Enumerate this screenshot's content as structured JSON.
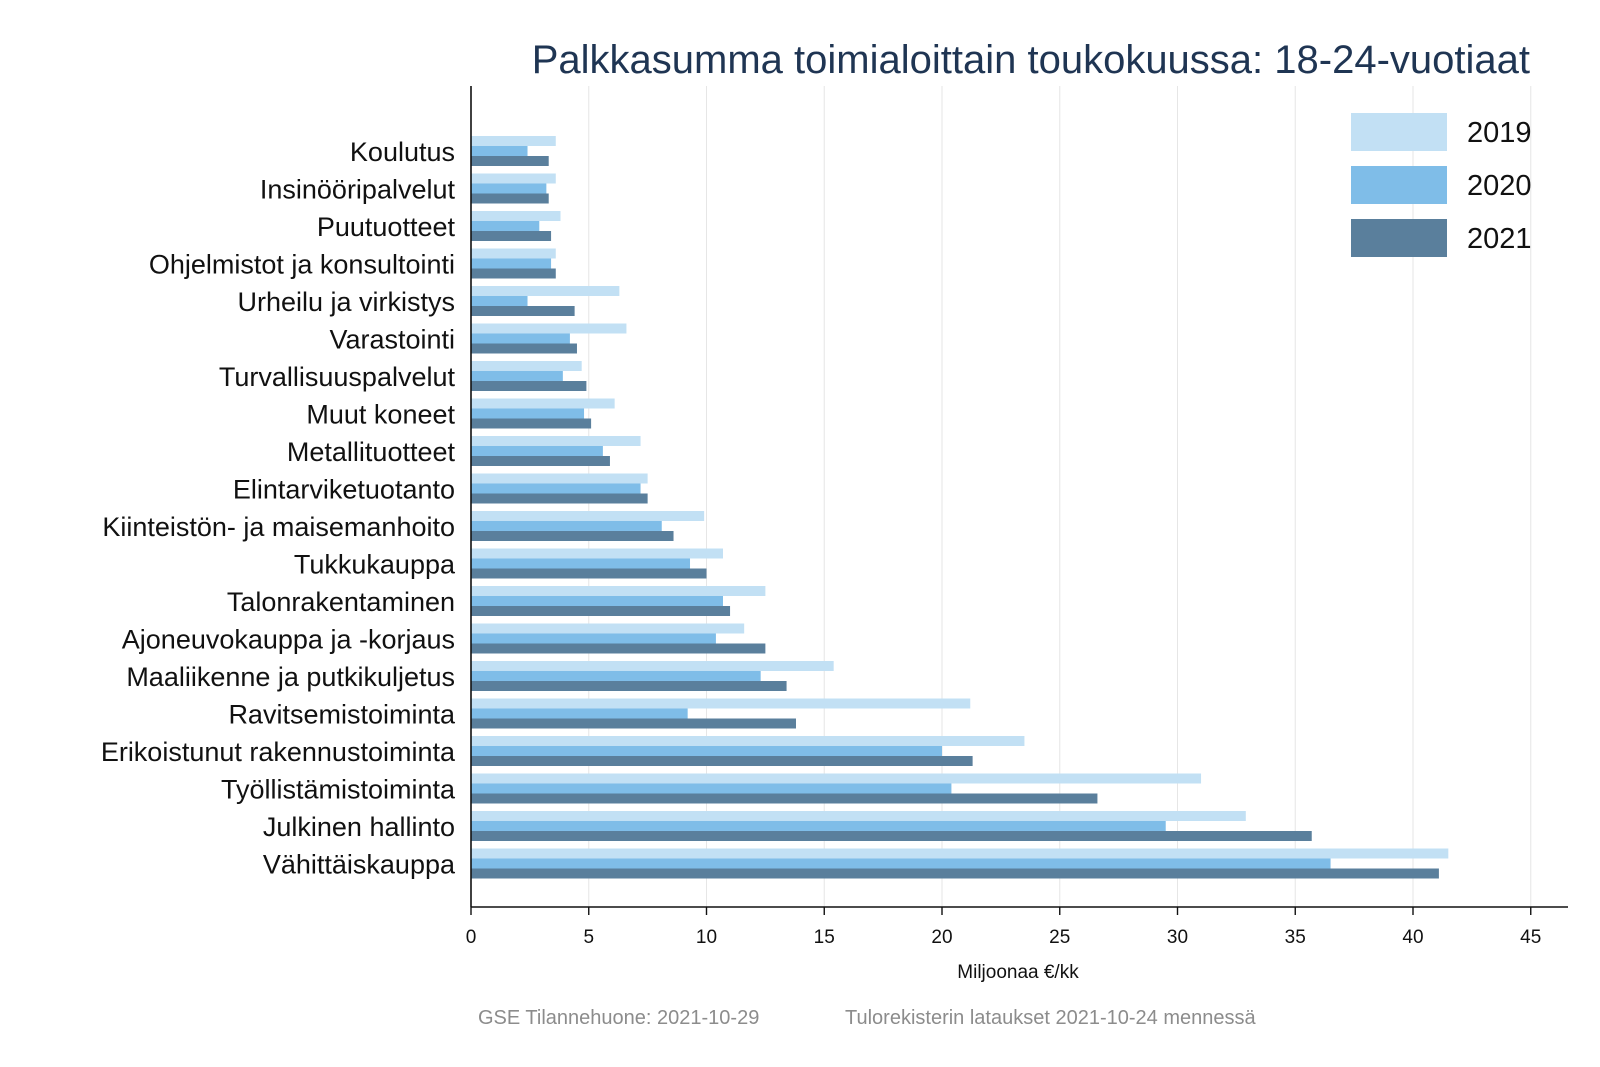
{
  "colors": {
    "series_2019": "#c2e0f4",
    "series_2020": "#7fbde8",
    "series_2021": "#5a7f9c"
  },
  "chart_data": {
    "type": "bar",
    "orientation": "horizontal",
    "title": "Palkkasumma toimialoittain toukokuussa: 18-24-vuotiaat",
    "xlabel": "Miljoonaa €/kk",
    "ylabel": "",
    "xlim": [
      0,
      45
    ],
    "xticks": [
      "0",
      "5",
      "10",
      "15",
      "20",
      "25",
      "30",
      "35",
      "40",
      "45"
    ],
    "grid": "vertical",
    "legend_position": "top-right",
    "categories": [
      "Koulutus",
      "Insinööripalvelut",
      "Puutuotteet",
      "Ohjelmistot ja konsultointi",
      "Urheilu ja virkistys",
      "Varastointi",
      "Turvallisuuspalvelut",
      "Muut koneet",
      "Metallituotteet",
      "Elintarviketuotanto",
      "Kiinteistön- ja maisemanhoito",
      "Tukkukauppa",
      "Talonrakentaminen",
      "Ajoneuvokauppa ja -korjaus",
      "Maaliikenne ja putkikuljetus",
      "Ravitsemistoiminta",
      "Erikoistunut rakennustoiminta",
      "Työllistämistoiminta",
      "Julkinen hallinto",
      "Vähittäiskauppa"
    ],
    "series": [
      {
        "name": "2019",
        "values": [
          3.6,
          3.6,
          3.8,
          3.6,
          6.3,
          6.6,
          4.7,
          6.1,
          7.2,
          7.5,
          9.9,
          10.7,
          12.5,
          11.6,
          15.4,
          21.2,
          23.5,
          31.0,
          32.9,
          41.5
        ]
      },
      {
        "name": "2020",
        "values": [
          2.4,
          3.2,
          2.9,
          3.4,
          2.4,
          4.2,
          3.9,
          4.8,
          5.6,
          7.2,
          8.1,
          9.3,
          10.7,
          10.4,
          12.3,
          9.2,
          20.0,
          20.4,
          29.5,
          36.5
        ]
      },
      {
        "name": "2021",
        "values": [
          3.3,
          3.3,
          3.4,
          3.6,
          4.4,
          4.5,
          4.9,
          5.1,
          5.9,
          7.5,
          8.6,
          10.0,
          11.0,
          12.5,
          13.4,
          13.8,
          21.3,
          26.6,
          35.7,
          41.1
        ]
      }
    ]
  },
  "footnotes": {
    "source": "GSE Tilannehuone: 2021-10-29",
    "data_note": "Tulorekisterin lataukset 2021-10-24 mennessä"
  }
}
